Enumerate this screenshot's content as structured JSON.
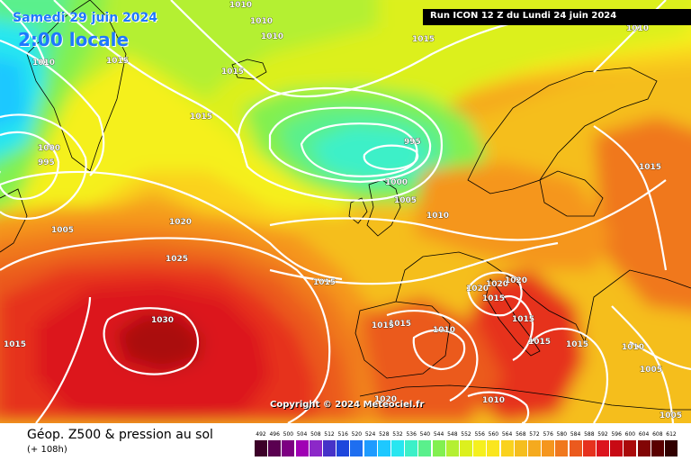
{
  "header": {
    "date": "Samedi 29 juin 2024",
    "time": "2:00 locale",
    "run": "Run ICON 12 Z du Lundi 24 juin 2024"
  },
  "footer": {
    "field": "Géop. Z500 & pression au sol",
    "lead": "(+ 108h)",
    "copyright": "Copyright © 2024 Meteociel.fr"
  },
  "legend": {
    "values": [
      "492",
      "496",
      "500",
      "504",
      "508",
      "512",
      "516",
      "520",
      "524",
      "528",
      "532",
      "536",
      "540",
      "544",
      "548",
      "552",
      "556",
      "560",
      "564",
      "568",
      "572",
      "576",
      "580",
      "584",
      "588",
      "592",
      "596",
      "600",
      "604",
      "608",
      "612"
    ],
    "colors": [
      "#3c0028",
      "#5a0050",
      "#7d0082",
      "#a000b4",
      "#8c28c8",
      "#4632c8",
      "#1e46dc",
      "#1e6ef0",
      "#1e9bff",
      "#1ec8ff",
      "#28e6f0",
      "#3cf0c8",
      "#5af08c",
      "#82f050",
      "#b4f032",
      "#dcf01e",
      "#f5f01e",
      "#fae61e",
      "#fad21e",
      "#f5be1e",
      "#f5aa1e",
      "#f5961e",
      "#f0781e",
      "#eb5a1e",
      "#e6321e",
      "#dc141e",
      "#c80a14",
      "#aa0a0a",
      "#820505",
      "#5a0000",
      "#320000"
    ]
  },
  "isobars": [
    {
      "value": "1010",
      "color": "#ffffff"
    },
    {
      "value": "1010",
      "color": "#ffffff"
    },
    {
      "value": "1010",
      "color": "#ffffff"
    },
    {
      "value": "1015",
      "color": "#ffffff"
    },
    {
      "value": "1015",
      "color": "#ffffff"
    },
    {
      "value": "1015",
      "color": "#ffffff"
    },
    {
      "value": "1015",
      "color": "#ffffff"
    },
    {
      "value": "1010",
      "color": "#ffffff"
    },
    {
      "value": "1000",
      "color": "#ffffff"
    },
    {
      "value": "995",
      "color": "#ffffff"
    },
    {
      "value": "1005",
      "color": "#ffffff"
    },
    {
      "value": "1020",
      "color": "#ffffff"
    },
    {
      "value": "1025",
      "color": "#ffffff"
    },
    {
      "value": "1030",
      "color": "#ffffff"
    },
    {
      "value": "1015",
      "color": "#ffffff"
    },
    {
      "value": "995",
      "color": "#ffffff"
    },
    {
      "value": "1000",
      "color": "#ffffff"
    },
    {
      "value": "1005",
      "color": "#ffffff"
    },
    {
      "value": "1010",
      "color": "#ffffff"
    },
    {
      "value": "1015",
      "color": "#ffffff"
    },
    {
      "value": "1015",
      "color": "#ffffff"
    },
    {
      "value": "1020",
      "color": "#ffffff"
    },
    {
      "value": "1020",
      "color": "#ffffff"
    },
    {
      "value": "1020",
      "color": "#ffffff"
    },
    {
      "value": "1015",
      "color": "#ffffff"
    },
    {
      "value": "1015",
      "color": "#ffffff"
    },
    {
      "value": "1015",
      "color": "#ffffff"
    },
    {
      "value": "1010",
      "color": "#ffffff"
    },
    {
      "value": "1015",
      "color": "#ffffff"
    },
    {
      "value": "1015",
      "color": "#ffffff"
    },
    {
      "value": "1015",
      "color": "#ffffff"
    },
    {
      "value": "1010",
      "color": "#ffffff"
    },
    {
      "value": "1005",
      "color": "#ffffff"
    },
    {
      "value": "1020",
      "color": "#ffffff"
    },
    {
      "value": "1010",
      "color": "#ffffff"
    },
    {
      "value": "1005",
      "color": "#ffffff"
    },
    {
      "value": "1010",
      "color": "#ffffff"
    }
  ]
}
